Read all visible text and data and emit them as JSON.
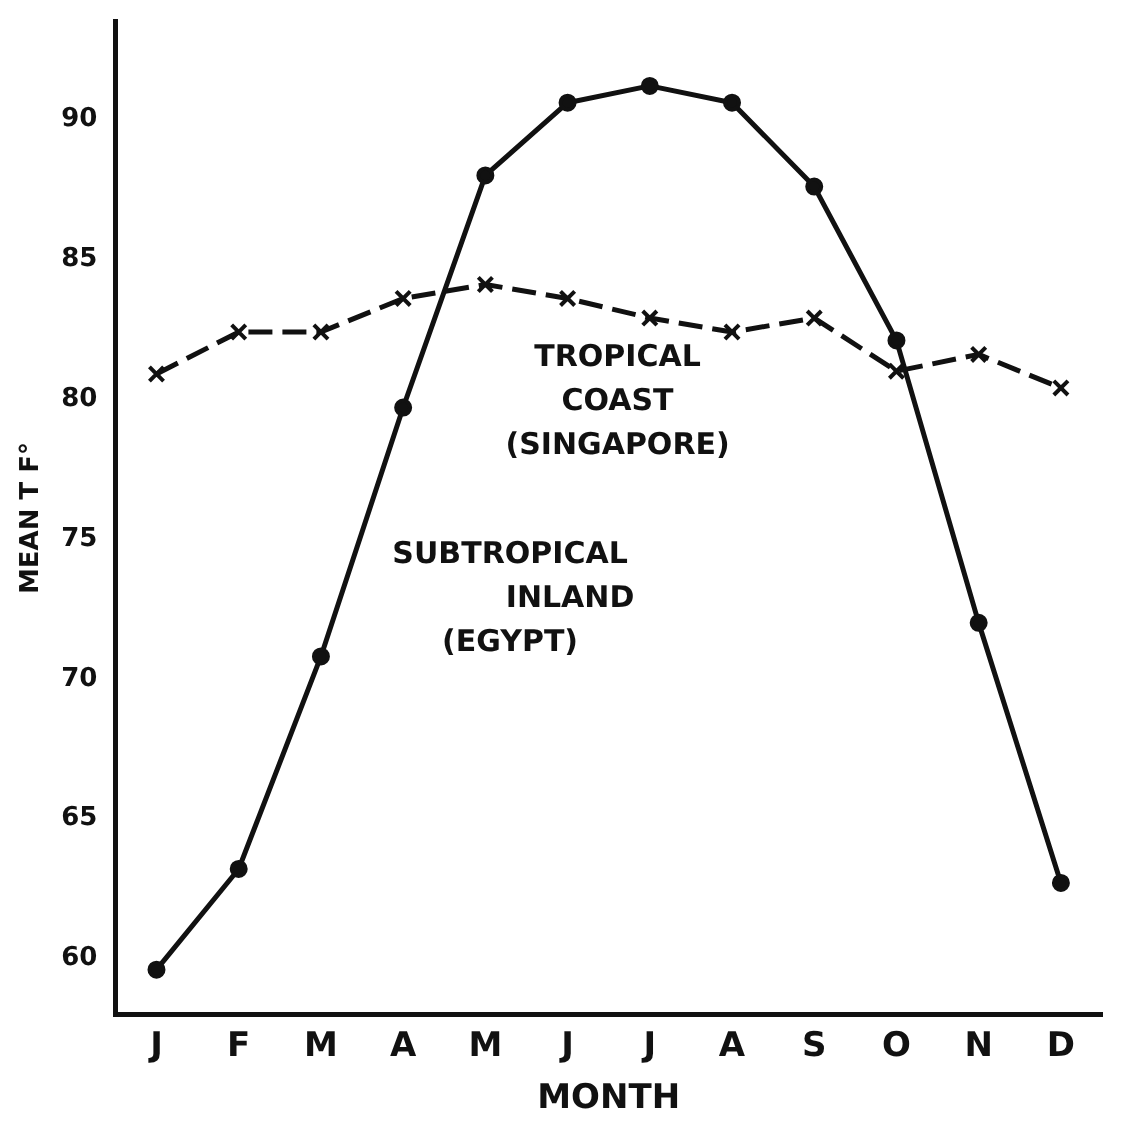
{
  "chart_data": {
    "type": "line",
    "xlabel": "MONTH",
    "ylabel": "MEAN T F°",
    "categories": [
      "J",
      "F",
      "M",
      "A",
      "M",
      "J",
      "J",
      "A",
      "S",
      "O",
      "N",
      "D"
    ],
    "series": [
      {
        "name": "TROPICAL COAST (SINGAPORE)",
        "color": "#111111",
        "marker": "cross",
        "line_style": "dashed",
        "values": [
          80.9,
          82.4,
          82.4,
          83.6,
          84.1,
          83.6,
          82.9,
          82.4,
          82.9,
          81.0,
          81.6,
          80.4
        ]
      },
      {
        "name": "SUBTROPICAL INLAND (EGYPT)",
        "color": "#111111",
        "marker": "circle",
        "line_style": "solid",
        "values": [
          59.6,
          63.2,
          70.8,
          79.7,
          88.0,
          90.6,
          91.2,
          90.6,
          87.6,
          82.1,
          72.0,
          62.7
        ]
      }
    ],
    "ylim": [
      58,
      93.5
    ],
    "yticks": [
      60,
      65,
      70,
      75,
      80,
      85,
      90
    ],
    "grid": false,
    "legend": false
  }
}
